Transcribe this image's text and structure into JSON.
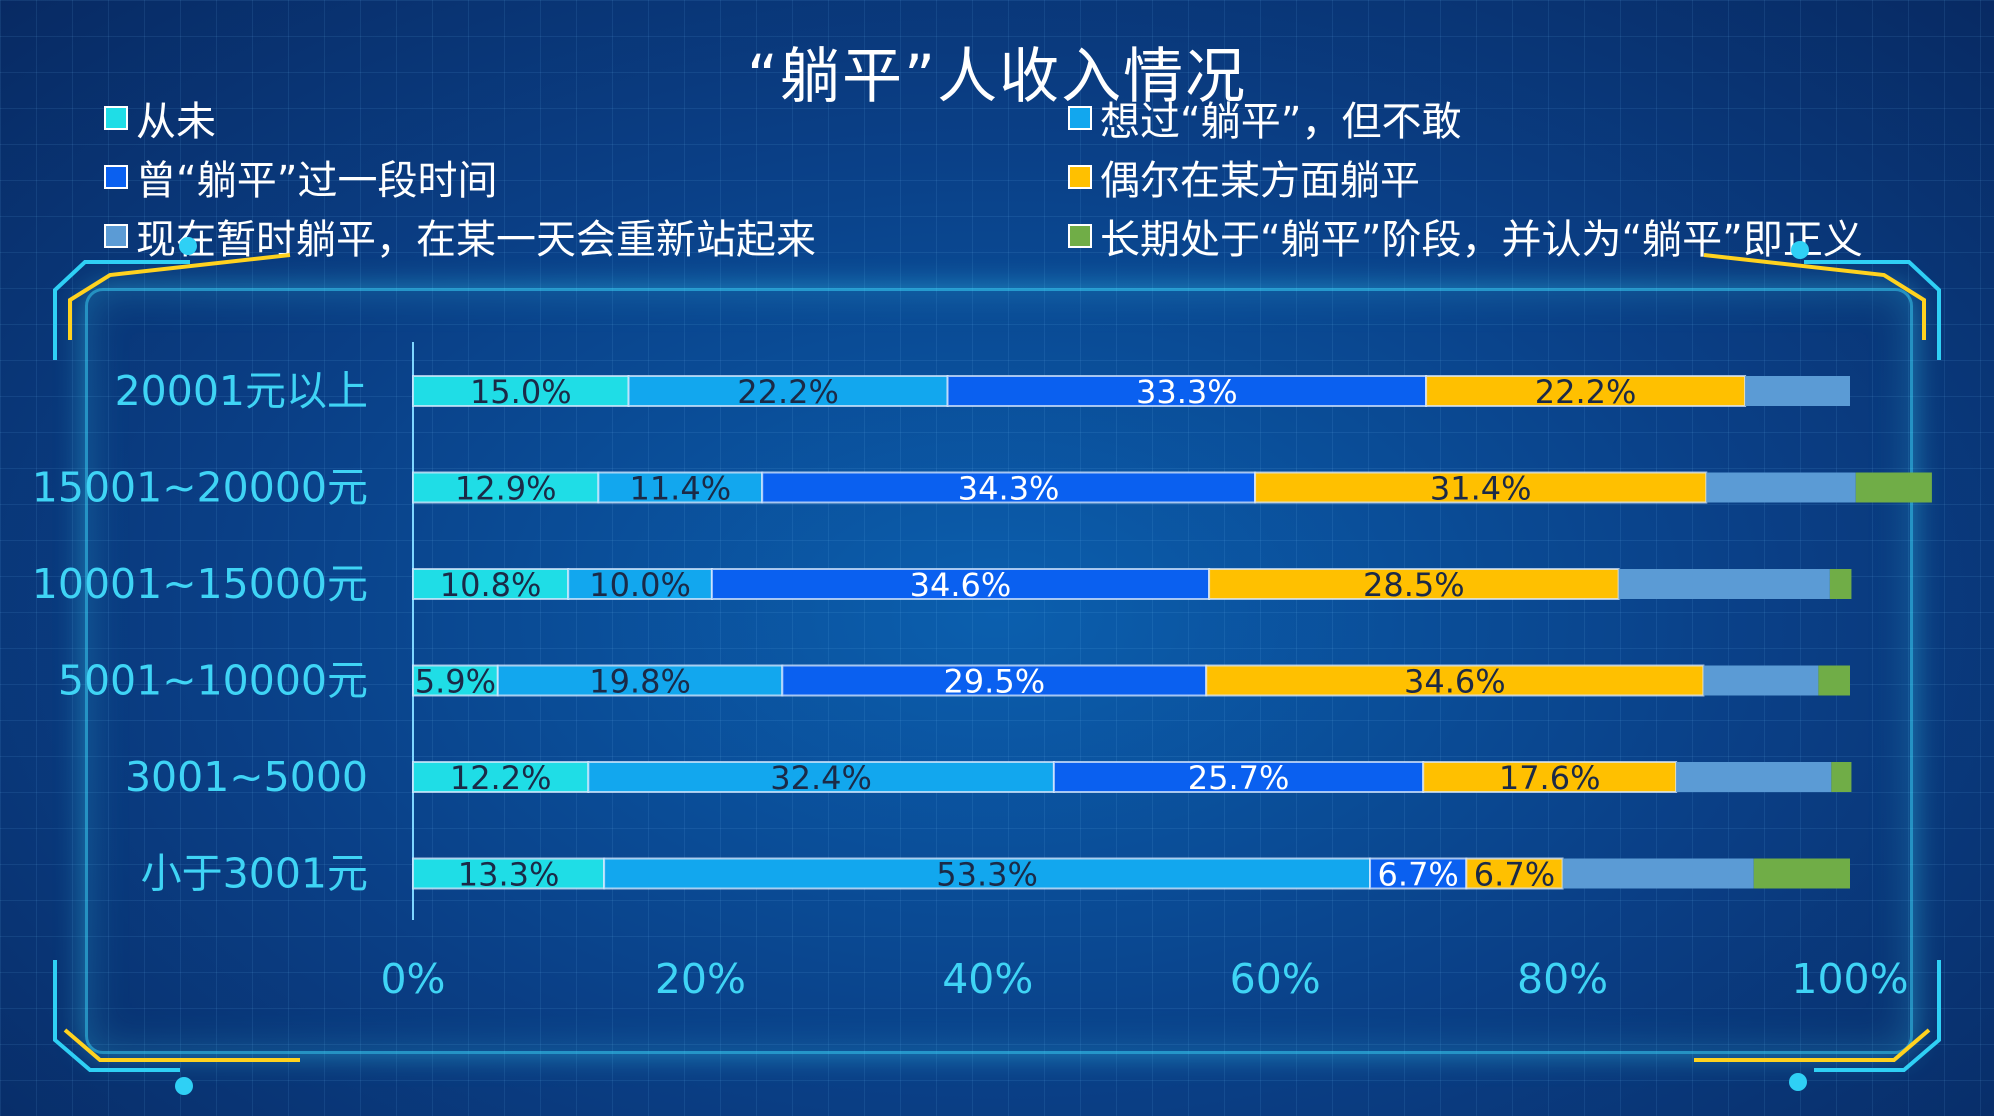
{
  "chart_data": {
    "type": "bar",
    "orientation": "horizontal",
    "stacked": "percent",
    "title": "“躺平”人收入情况",
    "categories": [
      "20001元以上",
      "15001~20000元",
      "10001~15000元",
      "5001~10000元",
      "3001~5000",
      "小于3001元"
    ],
    "series": [
      {
        "name": "从未",
        "color": "#1fdde6",
        "labels": [
          "15.0%",
          "12.9%",
          "10.8%",
          "5.9%",
          "12.2%",
          "13.3%"
        ],
        "values": [
          15.0,
          12.9,
          10.8,
          5.9,
          12.2,
          13.3
        ]
      },
      {
        "name": "想过“躺平”，但不敢",
        "color": "#12a7ee",
        "labels": [
          "22.2%",
          "11.4%",
          "10.0%",
          "19.8%",
          "32.4%",
          "53.3%"
        ],
        "values": [
          22.2,
          11.4,
          10.0,
          19.8,
          32.4,
          53.3
        ]
      },
      {
        "name": "曾“躺平”过一段时间",
        "color": "#0a60f0",
        "labels": [
          "33.3%",
          "34.3%",
          "34.6%",
          "29.5%",
          "25.7%",
          "6.7%"
        ],
        "values": [
          33.3,
          34.3,
          34.6,
          29.5,
          25.7,
          6.7
        ]
      },
      {
        "name": "偶尔在某方面躺平",
        "color": "#ffc000",
        "labels": [
          "22.2%",
          "31.4%",
          "28.5%",
          "34.6%",
          "17.6%",
          "6.7%"
        ],
        "values": [
          22.2,
          31.4,
          28.5,
          34.6,
          17.6,
          6.7
        ]
      },
      {
        "name": "现在暂时躺平，在某一天会重新站起来",
        "color": "#5b9bd5",
        "labels": [
          "",
          "",
          "",
          "",
          "",
          ""
        ],
        "values": [
          7.3,
          10.4,
          14.7,
          8.0,
          10.8,
          13.3
        ]
      },
      {
        "name": "长期处于“躺平”阶段，并认为“躺平”即正义",
        "color": "#70ad47",
        "labels": [
          "",
          "",
          "",
          "",
          "",
          ""
        ],
        "values": [
          0.0,
          5.3,
          1.5,
          2.2,
          1.4,
          6.7
        ]
      }
    ],
    "xticks": [
      "0%",
      "20%",
      "40%",
      "60%",
      "80%",
      "100%"
    ],
    "xlim": [
      0,
      100
    ],
    "legend": "top"
  }
}
